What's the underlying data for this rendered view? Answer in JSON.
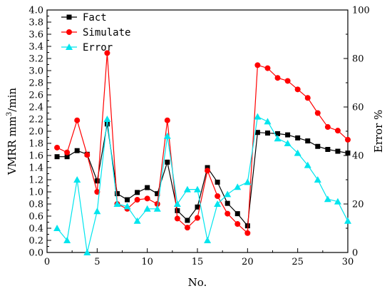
{
  "chart_data": {
    "type": "line",
    "xlabel": "No.",
    "ylabel": "VMRR mm³/min",
    "ylabel_parts": {
      "prefix": "VMRR mm",
      "sup": "3",
      "suffix": "/min"
    },
    "y2label": "Error %",
    "xlim": [
      0,
      30
    ],
    "ylim": [
      0,
      4.0
    ],
    "y2lim": [
      0,
      100
    ],
    "x_ticks": [
      0,
      5,
      10,
      15,
      20,
      25,
      30
    ],
    "y_ticks": [
      0.0,
      0.2,
      0.4,
      0.6,
      0.8,
      1.0,
      1.2,
      1.4,
      1.6,
      1.8,
      2.0,
      2.2,
      2.4,
      2.6,
      2.8,
      3.0,
      3.2,
      3.4,
      3.6,
      3.8,
      4.0
    ],
    "y2_ticks": [
      0,
      20,
      40,
      60,
      80,
      100
    ],
    "grid": false,
    "legend_position": "top-left",
    "x": [
      1,
      2,
      3,
      4,
      5,
      6,
      7,
      8,
      9,
      10,
      11,
      12,
      13,
      14,
      15,
      16,
      17,
      18,
      19,
      20,
      21,
      22,
      23,
      24,
      25,
      26,
      27,
      28,
      29,
      30
    ],
    "series": [
      {
        "name": "Fact",
        "axis": "left",
        "color": "#000000",
        "marker": "square",
        "values": [
          1.58,
          1.58,
          1.68,
          1.62,
          1.18,
          2.12,
          0.97,
          0.87,
          0.99,
          1.07,
          0.97,
          1.49,
          0.69,
          0.53,
          0.75,
          1.4,
          1.16,
          0.81,
          0.64,
          0.44,
          1.98,
          1.97,
          1.96,
          1.94,
          1.89,
          1.84,
          1.75,
          1.7,
          1.67,
          1.64
        ]
      },
      {
        "name": "Simulate",
        "axis": "left",
        "color": "#ff0000",
        "marker": "circle",
        "values": [
          1.73,
          1.65,
          2.18,
          1.61,
          1.0,
          3.29,
          0.8,
          0.72,
          0.87,
          0.89,
          0.8,
          2.18,
          0.56,
          0.41,
          0.57,
          1.35,
          0.93,
          0.64,
          0.47,
          0.32,
          3.09,
          3.04,
          2.88,
          2.83,
          2.69,
          2.55,
          2.3,
          2.07,
          2.01,
          1.86
        ]
      },
      {
        "name": "Error",
        "axis": "right",
        "color": "#00e5ee",
        "marker": "triangle",
        "values": [
          10,
          5,
          30,
          0,
          17,
          55,
          20,
          19,
          13,
          18,
          18,
          48,
          20,
          26,
          26,
          5,
          20,
          24,
          27,
          29,
          56,
          54,
          47,
          45,
          41,
          36,
          30,
          22,
          21,
          13
        ]
      }
    ]
  }
}
